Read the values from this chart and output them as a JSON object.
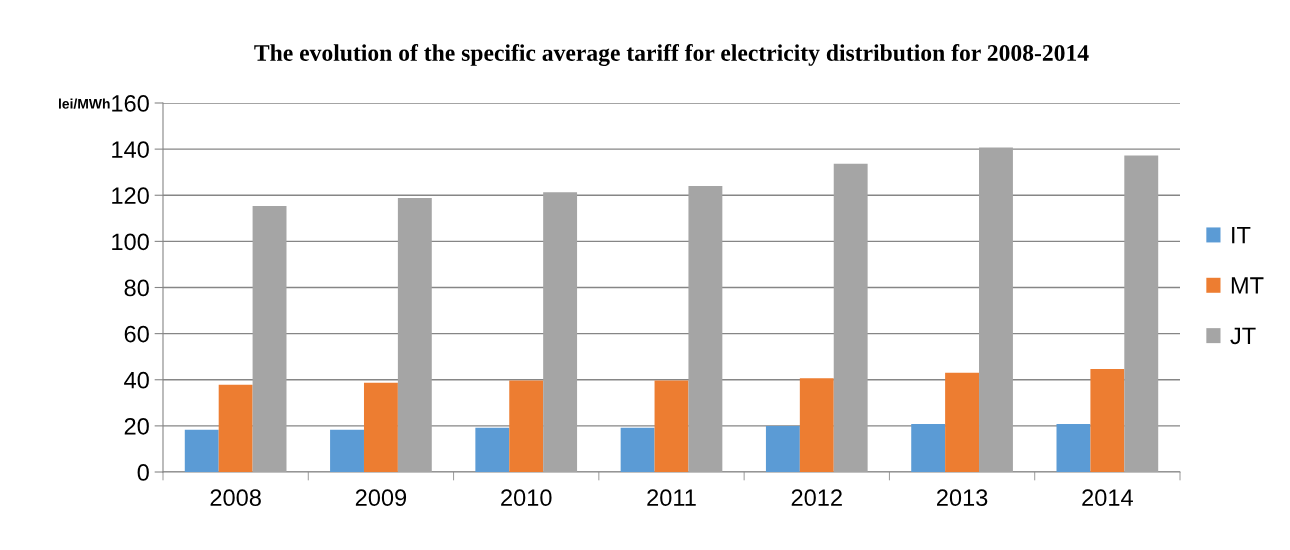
{
  "chart_data": {
    "type": "bar",
    "title": "The evolution of the specific average tariff for electricity distribution for 2008-2014",
    "ylabel": "lei/MWh",
    "categories": [
      "2008",
      "2009",
      "2010",
      "2011",
      "2012",
      "2013",
      "2014"
    ],
    "series": [
      {
        "name": "IT",
        "color": "#5b9bd5",
        "values": [
          18.3,
          18.3,
          19.2,
          19.2,
          20,
          20.8,
          20.8
        ]
      },
      {
        "name": "MT",
        "color": "#ed7d31",
        "values": [
          37.8,
          38.7,
          39.7,
          39.7,
          40.7,
          43,
          44.7
        ]
      },
      {
        "name": "JT",
        "color": "#a5a5a5",
        "values": [
          115.3,
          118.8,
          121.3,
          124,
          133.7,
          140.7,
          137.2
        ]
      }
    ],
    "ylim": [
      0,
      160
    ],
    "yticks": [
      0,
      20,
      40,
      60,
      80,
      100,
      120,
      140,
      160
    ],
    "grid": "y",
    "legend": "right"
  }
}
